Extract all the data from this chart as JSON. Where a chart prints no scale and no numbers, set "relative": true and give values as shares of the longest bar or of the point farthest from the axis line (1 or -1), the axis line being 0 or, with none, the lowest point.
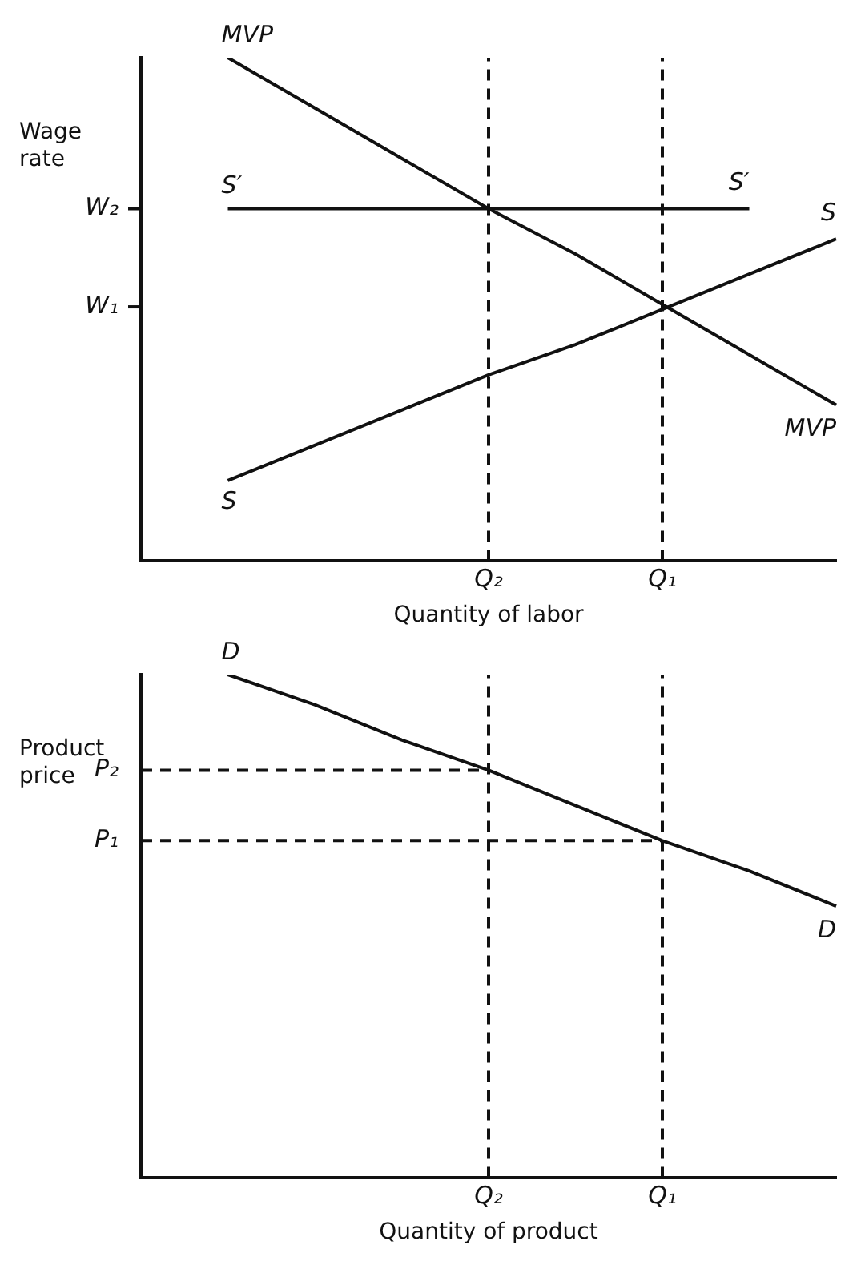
{
  "chart_data": [
    {
      "type": "line",
      "relative": true,
      "xlabel": "Quantity of labor",
      "ylabel": "Wage rate",
      "grid": false,
      "legend": false,
      "marker": "none",
      "categories": [
        null,
        null,
        null,
        null,
        "Q₂",
        null,
        "Q₁",
        null,
        null
      ],
      "ref_lines": [
        {
          "axis": "x",
          "value": "Q₂",
          "line_style": "dashed",
          "color": "#111111"
        },
        {
          "axis": "x",
          "value": "Q₁",
          "line_style": "dashed",
          "color": "#111111"
        },
        {
          "axis": "y",
          "value": 0.7,
          "label": "W₂",
          "color": "#111111"
        },
        {
          "axis": "y",
          "value": 0.505,
          "label": "W₁",
          "color": "#111111"
        }
      ],
      "series": [
        {
          "name": "MVP",
          "color": "#111111",
          "values": [
            null,
            1.0,
            0.9,
            0.8,
            0.7,
            0.61,
            0.51,
            0.41,
            0.31
          ],
          "line_style": "solid"
        },
        {
          "name": "S",
          "color": "#111111",
          "values": [
            null,
            0.16,
            0.23,
            0.3,
            0.37,
            0.43,
            0.5,
            0.57,
            0.64
          ],
          "line_style": "solid"
        },
        {
          "name": "S′",
          "color": "#111111",
          "values": [
            null,
            0.7,
            0.7,
            0.7,
            0.7,
            0.7,
            0.7,
            0.7,
            null
          ],
          "line_style": "solid"
        }
      ]
    },
    {
      "type": "line",
      "relative": true,
      "xlabel": "Quantity of product",
      "ylabel": "Product price",
      "grid": false,
      "legend": false,
      "marker": "none",
      "categories": [
        null,
        null,
        null,
        null,
        "Q₂",
        null,
        "Q₁",
        null,
        null
      ],
      "ref_lines": [
        {
          "axis": "x",
          "value": "Q₂",
          "line_style": "dashed",
          "color": "#111111"
        },
        {
          "axis": "x",
          "value": "Q₁",
          "line_style": "dashed",
          "color": "#111111"
        }
      ],
      "series": [
        {
          "name": "D",
          "color": "#111111",
          "values": [
            null,
            1.0,
            0.94,
            0.87,
            0.81,
            0.74,
            0.67,
            0.61,
            0.54
          ],
          "line_style": "solid"
        },
        {
          "name": "P₂",
          "color": "#111111",
          "values": [
            0.81,
            0.81,
            0.81,
            0.81,
            0.81,
            null,
            null,
            null,
            null
          ],
          "line_style": "dashed"
        },
        {
          "name": "P₁",
          "color": "#111111",
          "values": [
            0.67,
            0.67,
            0.67,
            0.67,
            0.67,
            0.67,
            0.67,
            null,
            null
          ],
          "line_style": "dashed"
        }
      ]
    }
  ]
}
